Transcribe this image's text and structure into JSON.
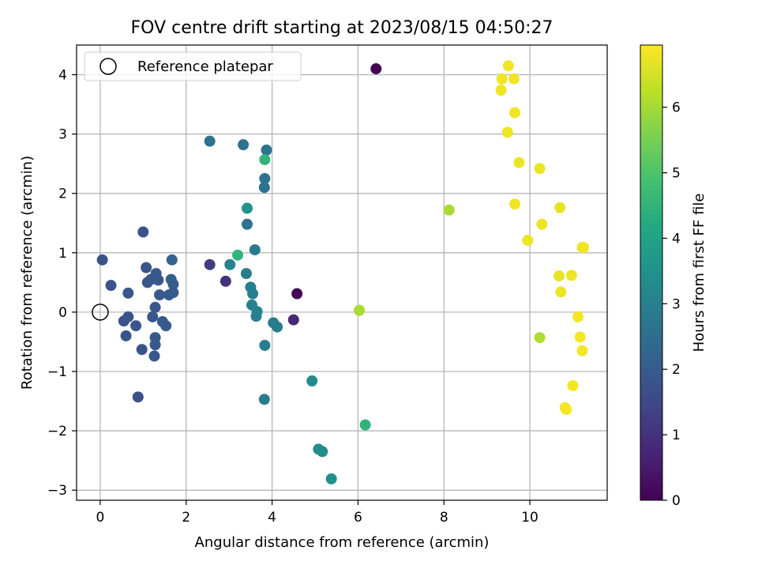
{
  "chart_data": {
    "type": "scatter",
    "title": "FOV centre drift starting at 2023/08/15 04:50:27",
    "xlabel": "Angular distance from reference (arcmin)",
    "ylabel": "Rotation from reference (arcmin)",
    "xlim": [
      -0.55,
      11.8
    ],
    "ylim": [
      -3.17,
      4.5
    ],
    "xticks": [
      0,
      2,
      4,
      6,
      8,
      10
    ],
    "yticks": [
      -3,
      -2,
      -1,
      0,
      1,
      2,
      3,
      4
    ],
    "grid": true,
    "legend": {
      "position": "upper-left",
      "entries": [
        "Reference platepar"
      ]
    },
    "reference_point": {
      "x": 0,
      "y": 0
    },
    "colorbar": {
      "label": "Hours from first FF file",
      "colormap": "viridis",
      "range": [
        0,
        6.95
      ],
      "ticks": [
        0,
        1,
        2,
        3,
        4,
        5,
        6
      ]
    },
    "points": [
      {
        "x": 6.42,
        "y": 4.1,
        "hours": 0.05
      },
      {
        "x": 4.58,
        "y": 0.31,
        "hours": 0.1
      },
      {
        "x": 4.5,
        "y": -0.13,
        "hours": 0.8
      },
      {
        "x": 2.92,
        "y": 0.52,
        "hours": 1.0
      },
      {
        "x": 2.55,
        "y": 0.8,
        "hours": 1.25
      },
      {
        "x": 0.88,
        "y": -1.43,
        "hours": 1.7
      },
      {
        "x": 1.0,
        "y": 1.35,
        "hours": 1.75
      },
      {
        "x": 0.05,
        "y": 0.88,
        "hours": 1.8
      },
      {
        "x": 0.25,
        "y": 0.45,
        "hours": 1.8
      },
      {
        "x": 0.55,
        "y": -0.15,
        "hours": 1.8
      },
      {
        "x": 0.65,
        "y": -0.08,
        "hours": 1.8
      },
      {
        "x": 0.6,
        "y": -0.4,
        "hours": 1.85
      },
      {
        "x": 0.65,
        "y": 0.32,
        "hours": 1.85
      },
      {
        "x": 0.83,
        "y": -0.23,
        "hours": 1.85
      },
      {
        "x": 0.97,
        "y": -0.63,
        "hours": 1.85
      },
      {
        "x": 1.07,
        "y": 0.75,
        "hours": 1.85
      },
      {
        "x": 1.1,
        "y": 0.5,
        "hours": 1.85
      },
      {
        "x": 1.18,
        "y": 0.55,
        "hours": 1.85
      },
      {
        "x": 1.22,
        "y": -0.08,
        "hours": 1.9
      },
      {
        "x": 1.28,
        "y": 0.08,
        "hours": 1.9
      },
      {
        "x": 1.28,
        "y": -0.43,
        "hours": 1.9
      },
      {
        "x": 1.28,
        "y": -0.55,
        "hours": 1.9
      },
      {
        "x": 1.26,
        "y": -0.74,
        "hours": 1.9
      },
      {
        "x": 1.3,
        "y": 0.65,
        "hours": 1.9
      },
      {
        "x": 1.35,
        "y": 0.54,
        "hours": 1.9
      },
      {
        "x": 1.38,
        "y": 0.29,
        "hours": 1.95
      },
      {
        "x": 1.45,
        "y": -0.16,
        "hours": 1.95
      },
      {
        "x": 1.53,
        "y": -0.23,
        "hours": 1.95
      },
      {
        "x": 1.6,
        "y": 0.29,
        "hours": 2.0
      },
      {
        "x": 1.65,
        "y": 0.55,
        "hours": 2.1
      },
      {
        "x": 1.7,
        "y": 0.47,
        "hours": 2.0
      },
      {
        "x": 1.7,
        "y": 0.33,
        "hours": 2.0
      },
      {
        "x": 1.67,
        "y": 0.88,
        "hours": 2.2
      },
      {
        "x": 2.55,
        "y": 2.88,
        "hours": 2.6
      },
      {
        "x": 3.33,
        "y": 2.82,
        "hours": 2.6
      },
      {
        "x": 3.87,
        "y": 2.73,
        "hours": 2.6
      },
      {
        "x": 3.83,
        "y": 2.25,
        "hours": 2.6
      },
      {
        "x": 3.82,
        "y": 2.1,
        "hours": 2.6
      },
      {
        "x": 3.42,
        "y": 1.48,
        "hours": 2.6
      },
      {
        "x": 3.02,
        "y": 0.8,
        "hours": 3.05
      },
      {
        "x": 3.6,
        "y": 1.05,
        "hours": 2.9
      },
      {
        "x": 3.4,
        "y": 0.65,
        "hours": 2.9
      },
      {
        "x": 3.5,
        "y": 0.42,
        "hours": 2.95
      },
      {
        "x": 3.55,
        "y": 0.31,
        "hours": 2.95
      },
      {
        "x": 3.53,
        "y": 0.12,
        "hours": 3.0
      },
      {
        "x": 3.65,
        "y": 0.01,
        "hours": 3.0
      },
      {
        "x": 3.63,
        "y": -0.07,
        "hours": 3.0
      },
      {
        "x": 4.03,
        "y": -0.18,
        "hours": 2.9
      },
      {
        "x": 4.12,
        "y": -0.25,
        "hours": 2.9
      },
      {
        "x": 3.83,
        "y": -0.56,
        "hours": 2.95
      },
      {
        "x": 3.82,
        "y": -1.47,
        "hours": 2.95
      },
      {
        "x": 3.42,
        "y": 1.75,
        "hours": 3.5
      },
      {
        "x": 3.2,
        "y": 0.96,
        "hours": 4.5
      },
      {
        "x": 3.83,
        "y": 2.57,
        "hours": 4.5
      },
      {
        "x": 4.93,
        "y": -1.16,
        "hours": 3.3
      },
      {
        "x": 5.08,
        "y": -2.31,
        "hours": 3.35
      },
      {
        "x": 5.17,
        "y": -2.35,
        "hours": 3.35
      },
      {
        "x": 5.38,
        "y": -2.81,
        "hours": 3.45
      },
      {
        "x": 6.17,
        "y": -1.9,
        "hours": 4.5
      },
      {
        "x": 6.03,
        "y": 0.03,
        "hours": 6.05
      },
      {
        "x": 8.12,
        "y": 1.72,
        "hours": 6.05
      },
      {
        "x": 10.23,
        "y": -0.43,
        "hours": 6.1
      },
      {
        "x": 9.5,
        "y": 4.15,
        "hours": 6.8
      },
      {
        "x": 9.35,
        "y": 3.93,
        "hours": 6.8
      },
      {
        "x": 9.63,
        "y": 3.93,
        "hours": 6.8
      },
      {
        "x": 9.33,
        "y": 3.74,
        "hours": 6.8
      },
      {
        "x": 9.65,
        "y": 3.36,
        "hours": 6.8
      },
      {
        "x": 9.48,
        "y": 3.03,
        "hours": 6.75
      },
      {
        "x": 9.75,
        "y": 2.52,
        "hours": 6.75
      },
      {
        "x": 10.23,
        "y": 2.42,
        "hours": 6.75
      },
      {
        "x": 9.65,
        "y": 1.82,
        "hours": 6.8
      },
      {
        "x": 10.7,
        "y": 1.76,
        "hours": 6.7
      },
      {
        "x": 10.28,
        "y": 1.48,
        "hours": 6.75
      },
      {
        "x": 9.95,
        "y": 1.21,
        "hours": 6.75
      },
      {
        "x": 11.25,
        "y": 1.09,
        "hours": 6.8
      },
      {
        "x": 11.22,
        "y": 1.09,
        "hours": 6.8
      },
      {
        "x": 10.68,
        "y": 0.61,
        "hours": 6.7
      },
      {
        "x": 10.97,
        "y": 0.62,
        "hours": 6.75
      },
      {
        "x": 10.72,
        "y": 0.34,
        "hours": 6.75
      },
      {
        "x": 11.12,
        "y": -0.08,
        "hours": 6.85
      },
      {
        "x": 11.17,
        "y": -0.42,
        "hours": 6.85
      },
      {
        "x": 11.22,
        "y": -0.65,
        "hours": 6.85
      },
      {
        "x": 11.0,
        "y": -1.24,
        "hours": 6.85
      },
      {
        "x": 10.82,
        "y": -1.61,
        "hours": 6.85
      },
      {
        "x": 10.85,
        "y": -1.64,
        "hours": 6.85
      }
    ]
  }
}
